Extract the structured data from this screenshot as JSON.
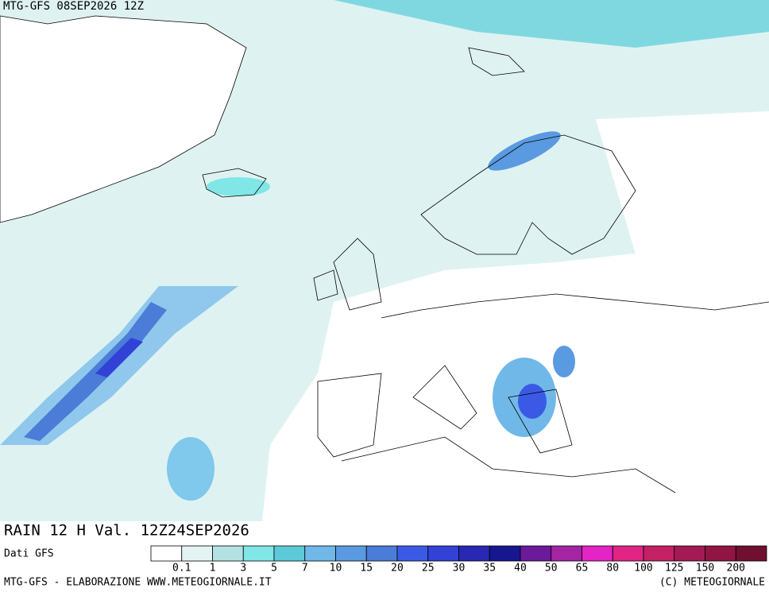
{
  "header": {
    "title": "MTG-GFS 08SEP2026 12Z"
  },
  "map_label": "RAIN 12 H Val. 12Z24SEP2026",
  "source": "Dati GFS",
  "legend": {
    "thresholds": [
      "0.1",
      "1",
      "3",
      "5",
      "7",
      "10",
      "15",
      "20",
      "25",
      "30",
      "35",
      "40",
      "50",
      "65",
      "80",
      "100",
      "125",
      "150",
      "200"
    ],
    "colors": [
      "#ffffff",
      "#e4f4f4",
      "#b4e2e2",
      "#80e6e6",
      "#5ccad8",
      "#70b8e8",
      "#5a9ae0",
      "#4a7cd8",
      "#3a5ae6",
      "#3242d6",
      "#2828b4",
      "#161690",
      "#6a1a9a",
      "#a424a4",
      "#e424c4",
      "#e02484",
      "#c42064",
      "#a41a54",
      "#901444",
      "#701030"
    ]
  },
  "footer": {
    "left": "MTG-GFS - ELABORAZIONE WWW.METEOGIORNALE.IT",
    "right": "(C) METEOGIORNALE"
  }
}
